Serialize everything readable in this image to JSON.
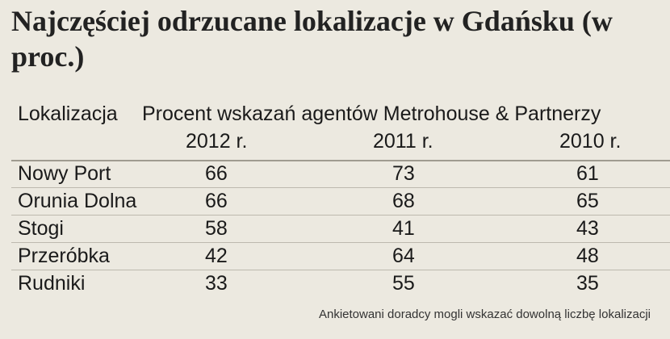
{
  "title": "Najczęściej odrzucane lokalizacje w Gdańsku (w proc.)",
  "chart_data": {
    "type": "table",
    "title": "Najczęściej odrzucane lokalizacje w Gdańsku (w proc.)",
    "header": {
      "location": "Lokalizacja",
      "group": "Procent wskazań agentów Metrohouse & Partnerzy"
    },
    "years": [
      "2012 r.",
      "2011 r.",
      "2010 r."
    ],
    "rows": [
      {
        "name": "Nowy Port",
        "values": [
          66,
          73,
          61
        ]
      },
      {
        "name": "Orunia Dolna",
        "values": [
          66,
          68,
          65
        ]
      },
      {
        "name": "Stogi",
        "values": [
          58,
          41,
          43
        ]
      },
      {
        "name": "Przeróbka",
        "values": [
          42,
          64,
          48
        ]
      },
      {
        "name": "Rudniki",
        "values": [
          33,
          55,
          35
        ]
      }
    ],
    "note": "Ankietowani doradcy mogli wskazać dowolną liczbę lokalizacji"
  }
}
